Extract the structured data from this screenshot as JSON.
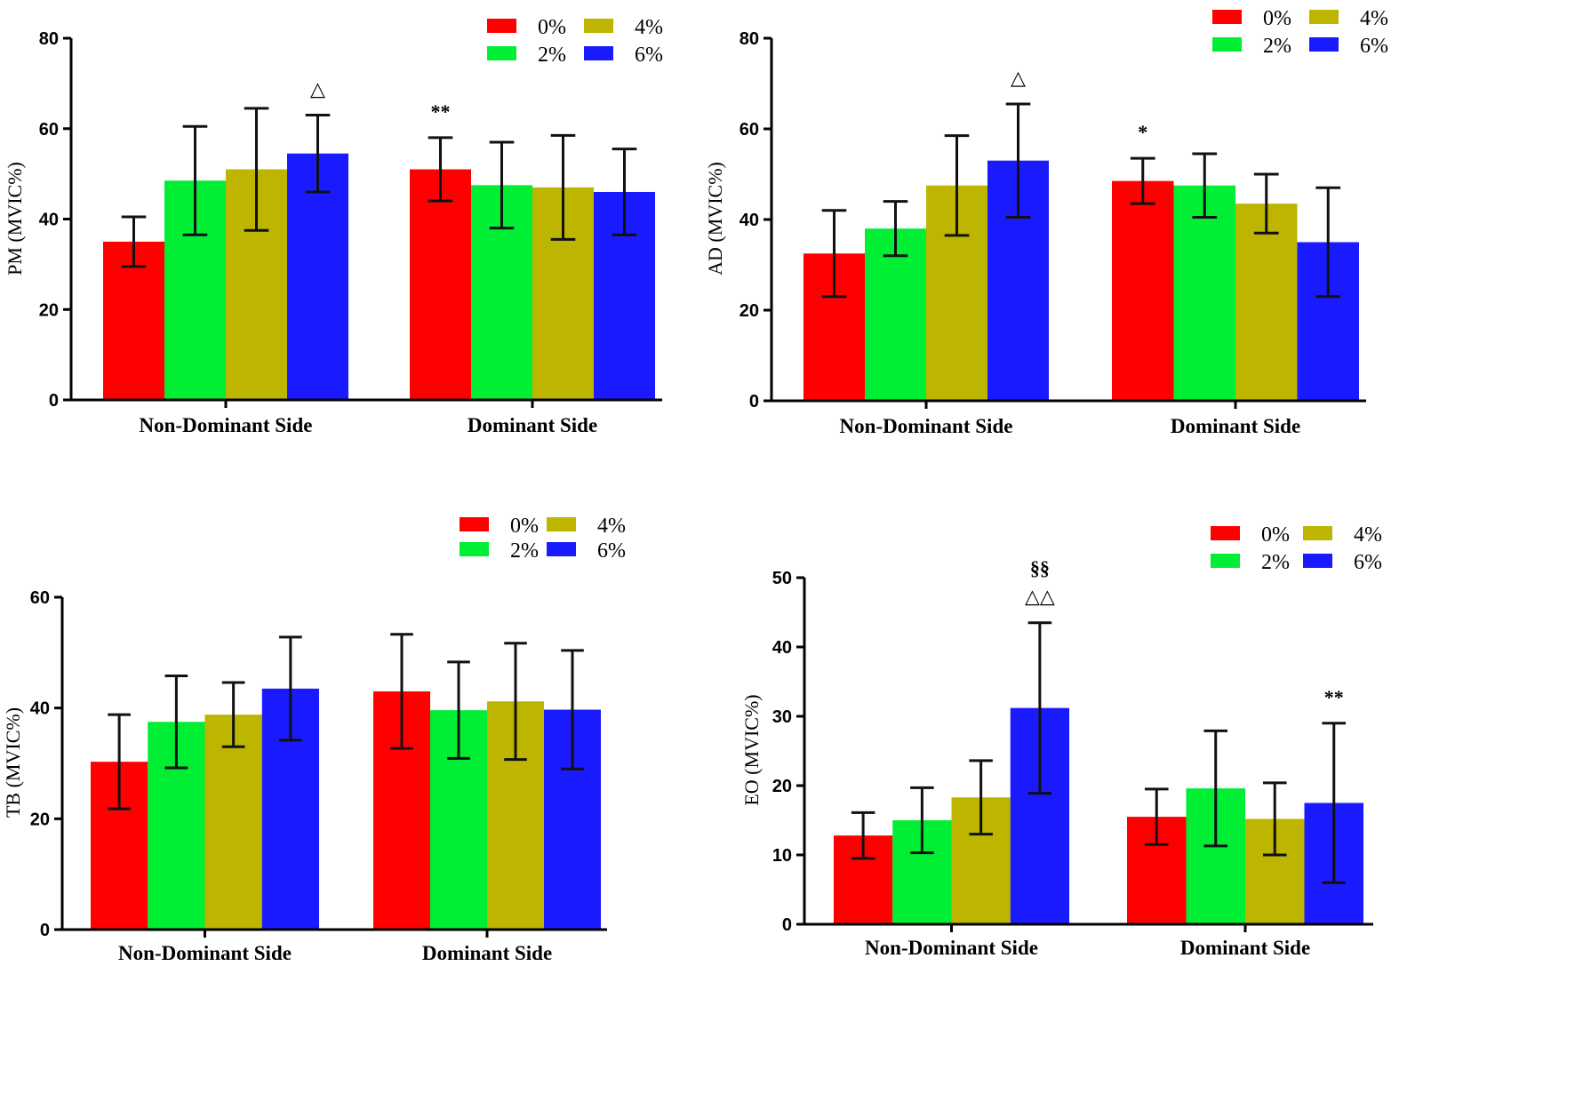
{
  "chart_data": [
    {
      "type": "bar",
      "ylabel": "PM (MVIC%)",
      "ylim": [
        0,
        80
      ],
      "yticks": [
        "0",
        "20",
        "40",
        "60",
        "80"
      ],
      "categories": [
        "Non-Dominant Side",
        "Dominant Side"
      ],
      "legend": [
        "0%",
        "2%",
        "4%",
        "6%"
      ],
      "series": [
        {
          "name": "0%",
          "values": [
            35,
            51
          ],
          "errors": [
            5.5,
            7
          ]
        },
        {
          "name": "2%",
          "values": [
            48.5,
            47.5
          ],
          "errors": [
            12,
            9.5
          ]
        },
        {
          "name": "4%",
          "values": [
            51,
            47
          ],
          "errors": [
            13.5,
            11.5
          ]
        },
        {
          "name": "6%",
          "values": [
            54.5,
            46
          ],
          "errors": [
            8.5,
            9.5
          ]
        }
      ],
      "annotations": [
        {
          "category": 0,
          "series": 3,
          "text": "△"
        },
        {
          "category": 1,
          "series": 0,
          "text": "**"
        }
      ]
    },
    {
      "type": "bar",
      "ylabel": "AD (MVIC%)",
      "ylim": [
        0,
        80
      ],
      "yticks": [
        "0",
        "20",
        "40",
        "60",
        "80"
      ],
      "categories": [
        "Non-Dominant Side",
        "Dominant Side"
      ],
      "legend": [
        "0%",
        "2%",
        "4%",
        "6%"
      ],
      "series": [
        {
          "name": "0%",
          "values": [
            32.5,
            48.5
          ],
          "errors": [
            9.5,
            5
          ]
        },
        {
          "name": "2%",
          "values": [
            38,
            47.5
          ],
          "errors": [
            6,
            7
          ]
        },
        {
          "name": "4%",
          "values": [
            47.5,
            43.5
          ],
          "errors": [
            11,
            6.5
          ]
        },
        {
          "name": "6%",
          "values": [
            53,
            35
          ],
          "errors": [
            12.5,
            12
          ]
        }
      ],
      "annotations": [
        {
          "category": 0,
          "series": 3,
          "text": "△"
        },
        {
          "category": 1,
          "series": 0,
          "text": "*"
        }
      ]
    },
    {
      "type": "bar",
      "ylabel": "TB (MVIC%)",
      "ylim": [
        0,
        60
      ],
      "yticks": [
        "0",
        "20",
        "40",
        "60"
      ],
      "categories": [
        "Non-Dominant Side",
        "Dominant Side"
      ],
      "legend": [
        "0%",
        "2%",
        "4%",
        "6%"
      ],
      "series": [
        {
          "name": "0%",
          "values": [
            30.3,
            43
          ],
          "errors": [
            8.5,
            10.3
          ]
        },
        {
          "name": "2%",
          "values": [
            37.5,
            39.6
          ],
          "errors": [
            8.3,
            8.7
          ]
        },
        {
          "name": "4%",
          "values": [
            38.8,
            41.2
          ],
          "errors": [
            5.8,
            10.5
          ]
        },
        {
          "name": "6%",
          "values": [
            43.5,
            39.7
          ],
          "errors": [
            9.3,
            10.7
          ]
        }
      ],
      "annotations": []
    },
    {
      "type": "bar",
      "ylabel": "EO (MVIC%)",
      "ylim": [
        0,
        50
      ],
      "yticks": [
        "0",
        "10",
        "20",
        "30",
        "40",
        "50"
      ],
      "categories": [
        "Non-Dominant Side",
        "Dominant Side"
      ],
      "legend": [
        "0%",
        "2%",
        "4%",
        "6%"
      ],
      "series": [
        {
          "name": "0%",
          "values": [
            12.8,
            15.5
          ],
          "errors": [
            3.3,
            4
          ]
        },
        {
          "name": "2%",
          "values": [
            15,
            19.6
          ],
          "errors": [
            4.7,
            8.3
          ]
        },
        {
          "name": "4%",
          "values": [
            18.3,
            15.2
          ],
          "errors": [
            5.3,
            5.2
          ]
        },
        {
          "name": "6%",
          "values": [
            31.2,
            17.5
          ],
          "errors": [
            12.3,
            11.5
          ]
        }
      ],
      "annotations": [
        {
          "category": 0,
          "series": 3,
          "text": "△△"
        },
        {
          "category": 0,
          "series": 3,
          "text": "§§"
        },
        {
          "category": 1,
          "series": 3,
          "text": "**"
        }
      ]
    }
  ],
  "colors": {
    "series": [
      "#ff0000",
      "#00ee33",
      "#bdb500",
      "#1a1aff"
    ],
    "axis": "#000000"
  }
}
